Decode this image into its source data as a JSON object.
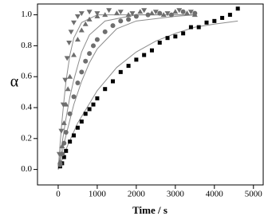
{
  "chart_data": {
    "type": "scatter",
    "xlabel": "Time / s",
    "ylabel": "α",
    "xlim": [
      -530,
      5250
    ],
    "ylim": [
      -0.1,
      1.07
    ],
    "xticks": [
      0,
      1000,
      2000,
      3000,
      4000,
      5000
    ],
    "yticks": [
      {
        "value": 0,
        "label": "0.0"
      },
      0.2,
      0.4,
      0.6,
      0.8,
      {
        "value": 1,
        "label": "1.0"
      }
    ],
    "series": [
      {
        "marker": "line",
        "color": "#8c8c8c",
        "x": [
          0,
          250,
          500,
          1000,
          1500,
          2000,
          2500,
          3000,
          3500,
          4000,
          4600
        ],
        "values": [
          0,
          0.16,
          0.3,
          0.51,
          0.66,
          0.76,
          0.83,
          0.88,
          0.92,
          0.94,
          0.96
        ]
      },
      {
        "marker": "line",
        "color": "#8c8c8c",
        "x": [
          0,
          200,
          400,
          600,
          800,
          1000,
          1500,
          2000,
          3000,
          3500
        ],
        "values": [
          0,
          0.22,
          0.42,
          0.57,
          0.69,
          0.78,
          0.91,
          0.96,
          0.99,
          1.0
        ]
      },
      {
        "marker": "line",
        "color": "#8c8c8c",
        "x": [
          0,
          100,
          200,
          300,
          400,
          600,
          800,
          1200,
          2000,
          3500
        ],
        "values": [
          0,
          0.17,
          0.33,
          0.47,
          0.58,
          0.76,
          0.87,
          0.96,
          1.0,
          1.0
        ]
      },
      {
        "marker": "line",
        "color": "#8c8c8c",
        "x": [
          0,
          50,
          100,
          150,
          200,
          300,
          400,
          600,
          1000,
          3500
        ],
        "values": [
          0,
          0.17,
          0.32,
          0.45,
          0.57,
          0.74,
          0.85,
          0.95,
          1.0,
          1.0
        ]
      },
      {
        "marker": "square",
        "color": "#000000",
        "x": [
          50,
          100,
          150,
          200,
          300,
          400,
          500,
          600,
          700,
          800,
          900,
          1000,
          1200,
          1400,
          1600,
          1800,
          2000,
          2200,
          2400,
          2600,
          2800,
          3000,
          3200,
          3400,
          3600,
          3800,
          4000,
          4200,
          4400,
          4600
        ],
        "values": [
          0.02,
          0.04,
          0.08,
          0.12,
          0.18,
          0.22,
          0.27,
          0.31,
          0.36,
          0.39,
          0.42,
          0.46,
          0.52,
          0.57,
          0.63,
          0.67,
          0.71,
          0.74,
          0.77,
          0.82,
          0.85,
          0.86,
          0.88,
          0.92,
          0.92,
          0.95,
          0.96,
          0.98,
          1.0,
          1.04
        ]
      },
      {
        "marker": "circle",
        "color": "#6e6e6e",
        "x": [
          50,
          100,
          150,
          200,
          300,
          400,
          500,
          600,
          700,
          800,
          900,
          1000,
          1200,
          1400,
          1600,
          1800,
          2000,
          2300,
          2600,
          2900,
          3200,
          3500
        ],
        "values": [
          0.03,
          0.1,
          0.17,
          0.24,
          0.36,
          0.47,
          0.56,
          0.63,
          0.7,
          0.75,
          0.8,
          0.84,
          0.89,
          0.93,
          0.96,
          0.97,
          0.99,
          1.0,
          1.01,
          1.0,
          1.02,
          1.01
        ]
      },
      {
        "marker": "triangle-up",
        "color": "#6e6e6e",
        "x": [
          50,
          100,
          150,
          200,
          250,
          300,
          400,
          500,
          600,
          700,
          800,
          1000,
          1200,
          1500,
          1800,
          2100,
          2400,
          2700,
          3000,
          3300,
          3500
        ],
        "values": [
          0.05,
          0.15,
          0.3,
          0.42,
          0.52,
          0.6,
          0.74,
          0.84,
          0.9,
          0.94,
          0.97,
          0.99,
          1.0,
          1.01,
          1.0,
          1.02,
          1.01,
          1.0,
          1.02,
          1.01,
          1.0
        ]
      },
      {
        "marker": "triangle-down",
        "color": "#6e6e6e",
        "x": [
          30,
          80,
          130,
          180,
          230,
          280,
          330,
          400,
          500,
          600,
          800,
          1000,
          1300,
          1600,
          1900,
          2200,
          2500,
          2800,
          3100,
          3400
        ],
        "values": [
          0.1,
          0.25,
          0.42,
          0.58,
          0.72,
          0.82,
          0.89,
          0.95,
          0.99,
          1.01,
          1.02,
          1.01,
          1.03,
          1.02,
          1.01,
          1.03,
          1.02,
          1.01,
          1.03,
          1.02
        ]
      }
    ]
  }
}
